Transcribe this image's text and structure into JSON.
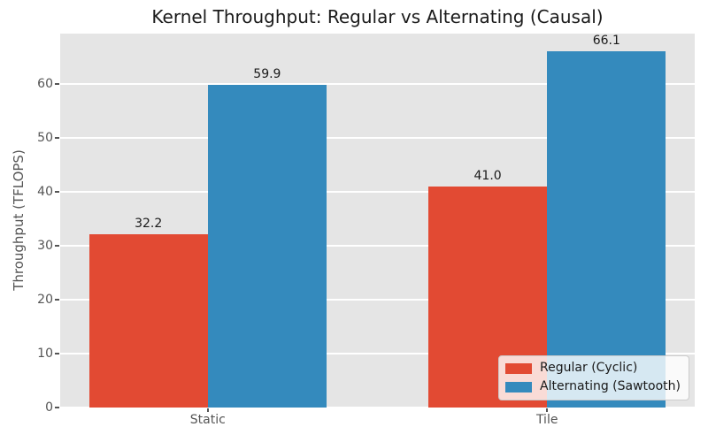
{
  "chart_data": {
    "type": "bar",
    "title": "Kernel Throughput: Regular vs Alternating (Causal)",
    "xlabel": "",
    "ylabel": "Throughput (TFLOPS)",
    "categories": [
      "Static",
      "Tile"
    ],
    "series": [
      {
        "name": "Regular (Cyclic)",
        "color": "#E24A33",
        "values": [
          32.2,
          41.0
        ],
        "labels": [
          "32.2",
          "41.0"
        ]
      },
      {
        "name": "Alternating (Sawtooth)",
        "color": "#348ABD",
        "values": [
          59.9,
          66.1
        ],
        "labels": [
          "59.9",
          "66.1"
        ]
      }
    ],
    "ylim": [
      0,
      69.4
    ],
    "yticks": [
      0,
      10,
      20,
      30,
      40,
      50,
      60
    ],
    "ytick_labels": [
      "0",
      "10",
      "20",
      "30",
      "40",
      "50",
      "60"
    ],
    "grid": true,
    "legend_position": "lower right",
    "colors": {
      "plot_background": "#E5E5E5",
      "figure_background": "#FFFFFF",
      "gridline": "#FFFFFF",
      "tick_text": "#555555",
      "title_text": "#1A1A1A"
    }
  }
}
